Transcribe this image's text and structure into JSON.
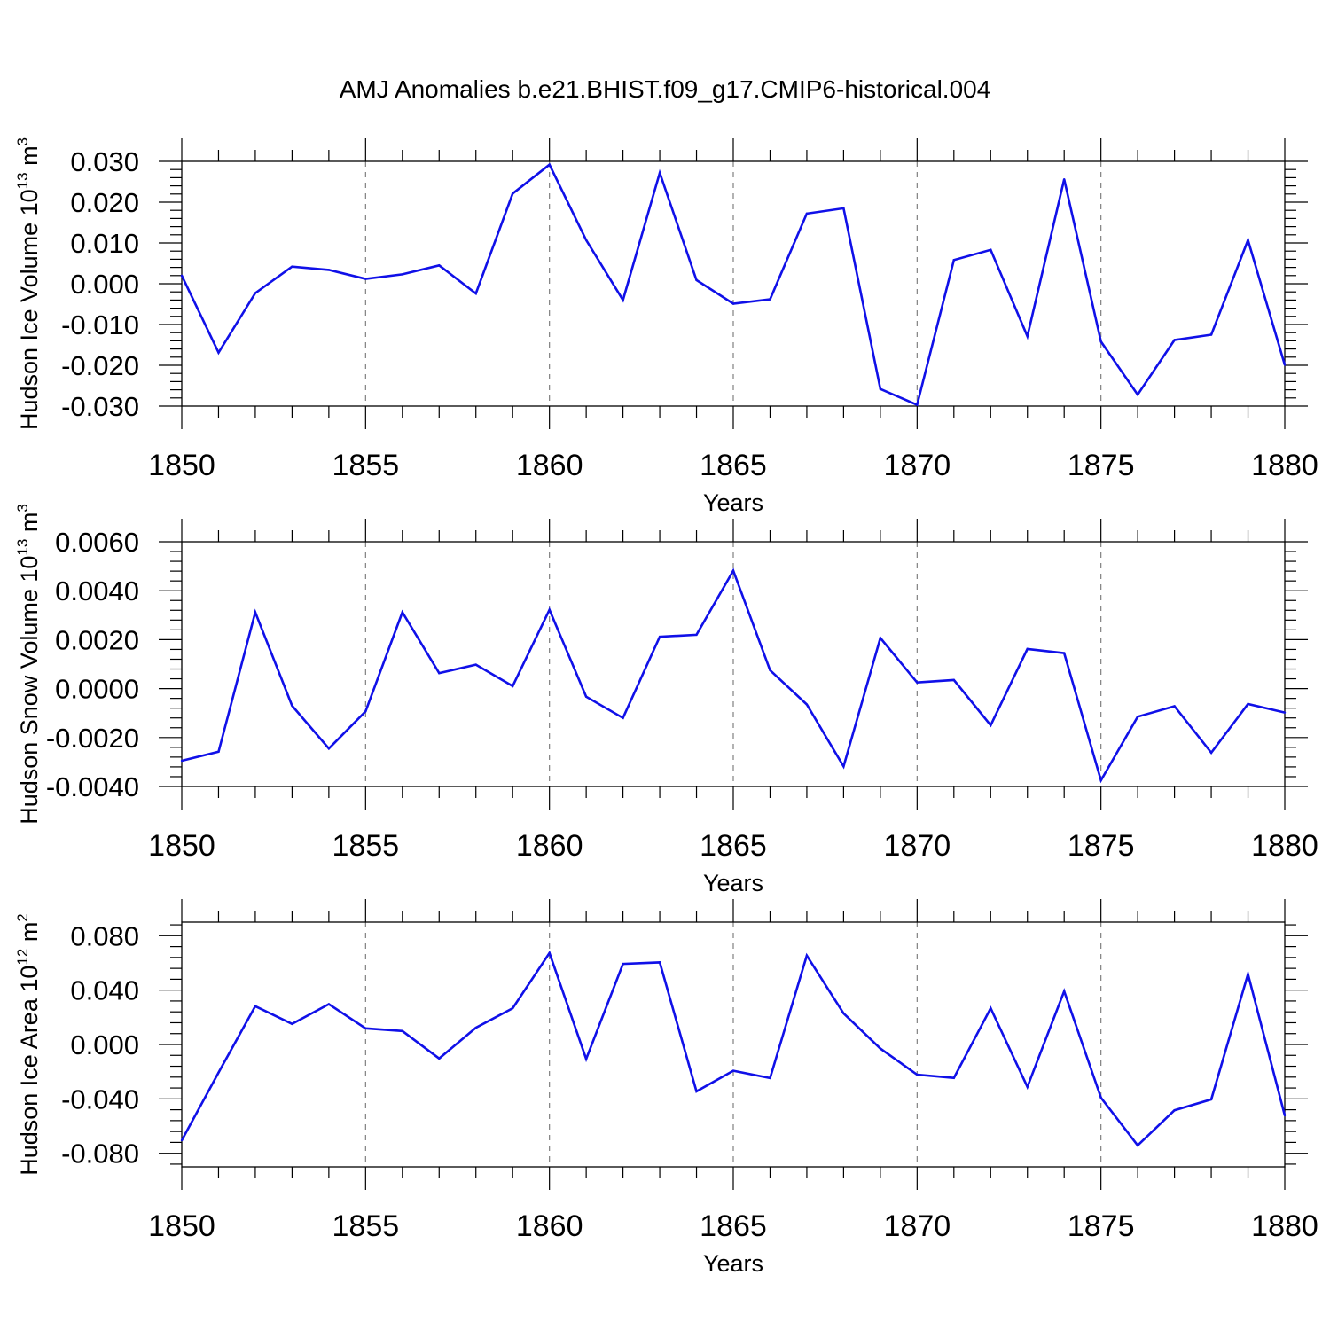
{
  "title": "AMJ Anomalies b.e21.BHIST.f09_g17.CMIP6-historical.004",
  "colors": {
    "line": "#1010e8",
    "axis": "#000000",
    "grid": "#808080"
  },
  "chart_data": [
    {
      "type": "line",
      "title": "AMJ Anomalies b.e21.BHIST.f09_g17.CMIP6-historical.004",
      "ylabel": {
        "text": "Hudson Ice Volume 10",
        "exp": "13",
        "unit": " m",
        "unit_exp": "3"
      },
      "xlabel": "Years",
      "xlim": [
        1850,
        1880
      ],
      "ylim": [
        -0.03,
        0.03
      ],
      "xticks": [
        "1850",
        "1855",
        "1860",
        "1865",
        "1870",
        "1875",
        "1880"
      ],
      "yticks": [
        {
          "v": 0.03,
          "label": "0.030"
        },
        {
          "v": 0.02,
          "label": "0.020"
        },
        {
          "v": 0.01,
          "label": "0.010"
        },
        {
          "v": 0.0,
          "label": "0.000"
        },
        {
          "v": -0.01,
          "label": "-0.010"
        },
        {
          "v": -0.02,
          "label": "-0.020"
        },
        {
          "v": -0.03,
          "label": "-0.030"
        }
      ],
      "series": [
        {
          "name": "Hudson Ice Volume",
          "x": [
            1850,
            1851,
            1852,
            1853,
            1854,
            1855,
            1856,
            1857,
            1858,
            1859,
            1860,
            1861,
            1862,
            1863,
            1864,
            1865,
            1866,
            1867,
            1868,
            1869,
            1870,
            1871,
            1872,
            1873,
            1874,
            1875,
            1876,
            1877,
            1878,
            1879,
            1880
          ],
          "values": [
            0.002,
            -0.0169,
            -0.0023,
            0.0042,
            0.0034,
            0.0012,
            0.0023,
            0.0045,
            -0.0024,
            0.0221,
            0.0292,
            0.0107,
            -0.004,
            0.0272,
            0.0009,
            -0.0049,
            -0.0038,
            0.0172,
            0.0185,
            -0.0258,
            -0.0297,
            0.0058,
            0.0083,
            -0.0129,
            0.0256,
            -0.0142,
            -0.0272,
            -0.0138,
            -0.0125,
            0.0107,
            -0.0199
          ]
        }
      ]
    },
    {
      "type": "line",
      "ylabel": {
        "text": "Hudson Snow Volume 10",
        "exp": "13",
        "unit": " m",
        "unit_exp": "3"
      },
      "xlabel": "Years",
      "xlim": [
        1850,
        1880
      ],
      "ylim": [
        -0.004,
        0.006
      ],
      "xticks": [
        "1850",
        "1855",
        "1860",
        "1865",
        "1870",
        "1875",
        "1880"
      ],
      "yticks": [
        {
          "v": 0.006,
          "label": "0.0060"
        },
        {
          "v": 0.004,
          "label": "0.0040"
        },
        {
          "v": 0.002,
          "label": "0.0020"
        },
        {
          "v": 0.0,
          "label": "0.0000"
        },
        {
          "v": -0.002,
          "label": "-0.0020"
        },
        {
          "v": -0.004,
          "label": "-0.0040"
        }
      ],
      "series": [
        {
          "name": "Hudson Snow Volume",
          "x": [
            1850,
            1851,
            1852,
            1853,
            1854,
            1855,
            1856,
            1857,
            1858,
            1859,
            1860,
            1861,
            1862,
            1863,
            1864,
            1865,
            1866,
            1867,
            1868,
            1869,
            1870,
            1871,
            1872,
            1873,
            1874,
            1875,
            1876,
            1877,
            1878,
            1879,
            1880
          ],
          "values": [
            -0.00295,
            -0.00258,
            0.00312,
            -0.0007,
            -0.00245,
            -0.00093,
            0.00312,
            0.00063,
            0.00098,
            0.0001,
            0.00322,
            -0.00033,
            -0.0012,
            0.00212,
            0.0022,
            0.00482,
            0.00075,
            -0.00065,
            -0.00318,
            0.00207,
            0.00025,
            0.00035,
            -0.0015,
            0.00162,
            0.00145,
            -0.00375,
            -0.00115,
            -0.00072,
            -0.00262,
            -0.00063,
            -0.00098
          ]
        }
      ]
    },
    {
      "type": "line",
      "ylabel": {
        "text": "Hudson Ice Area 10",
        "exp": "12",
        "unit": " m",
        "unit_exp": "2"
      },
      "xlabel": "Years",
      "xlim": [
        1850,
        1880
      ],
      "ylim": [
        -0.09,
        0.09
      ],
      "xticks": [
        "1850",
        "1855",
        "1860",
        "1865",
        "1870",
        "1875",
        "1880"
      ],
      "yticks": [
        {
          "v": 0.08,
          "label": "0.080"
        },
        {
          "v": 0.04,
          "label": "0.040"
        },
        {
          "v": 0.0,
          "label": "0.000"
        },
        {
          "v": -0.04,
          "label": "-0.040"
        },
        {
          "v": -0.08,
          "label": "-0.080"
        }
      ],
      "series": [
        {
          "name": "Hudson Ice Area",
          "x": [
            1850,
            1851,
            1852,
            1853,
            1854,
            1855,
            1856,
            1857,
            1858,
            1859,
            1860,
            1861,
            1862,
            1863,
            1864,
            1865,
            1866,
            1867,
            1868,
            1869,
            1870,
            1871,
            1872,
            1873,
            1874,
            1875,
            1876,
            1877,
            1878,
            1879,
            1880
          ],
          "values": [
            -0.0705,
            -0.0206,
            0.0282,
            0.0151,
            0.0297,
            0.0119,
            0.0099,
            -0.0103,
            0.0123,
            0.0267,
            0.0673,
            -0.0106,
            0.0593,
            0.0604,
            -0.0345,
            -0.0193,
            -0.0247,
            0.0654,
            0.0229,
            -0.003,
            -0.0222,
            -0.0246,
            0.0267,
            -0.0312,
            0.0392,
            -0.0391,
            -0.0742,
            -0.0484,
            -0.0404,
            0.0518,
            -0.0522
          ]
        }
      ]
    }
  ]
}
